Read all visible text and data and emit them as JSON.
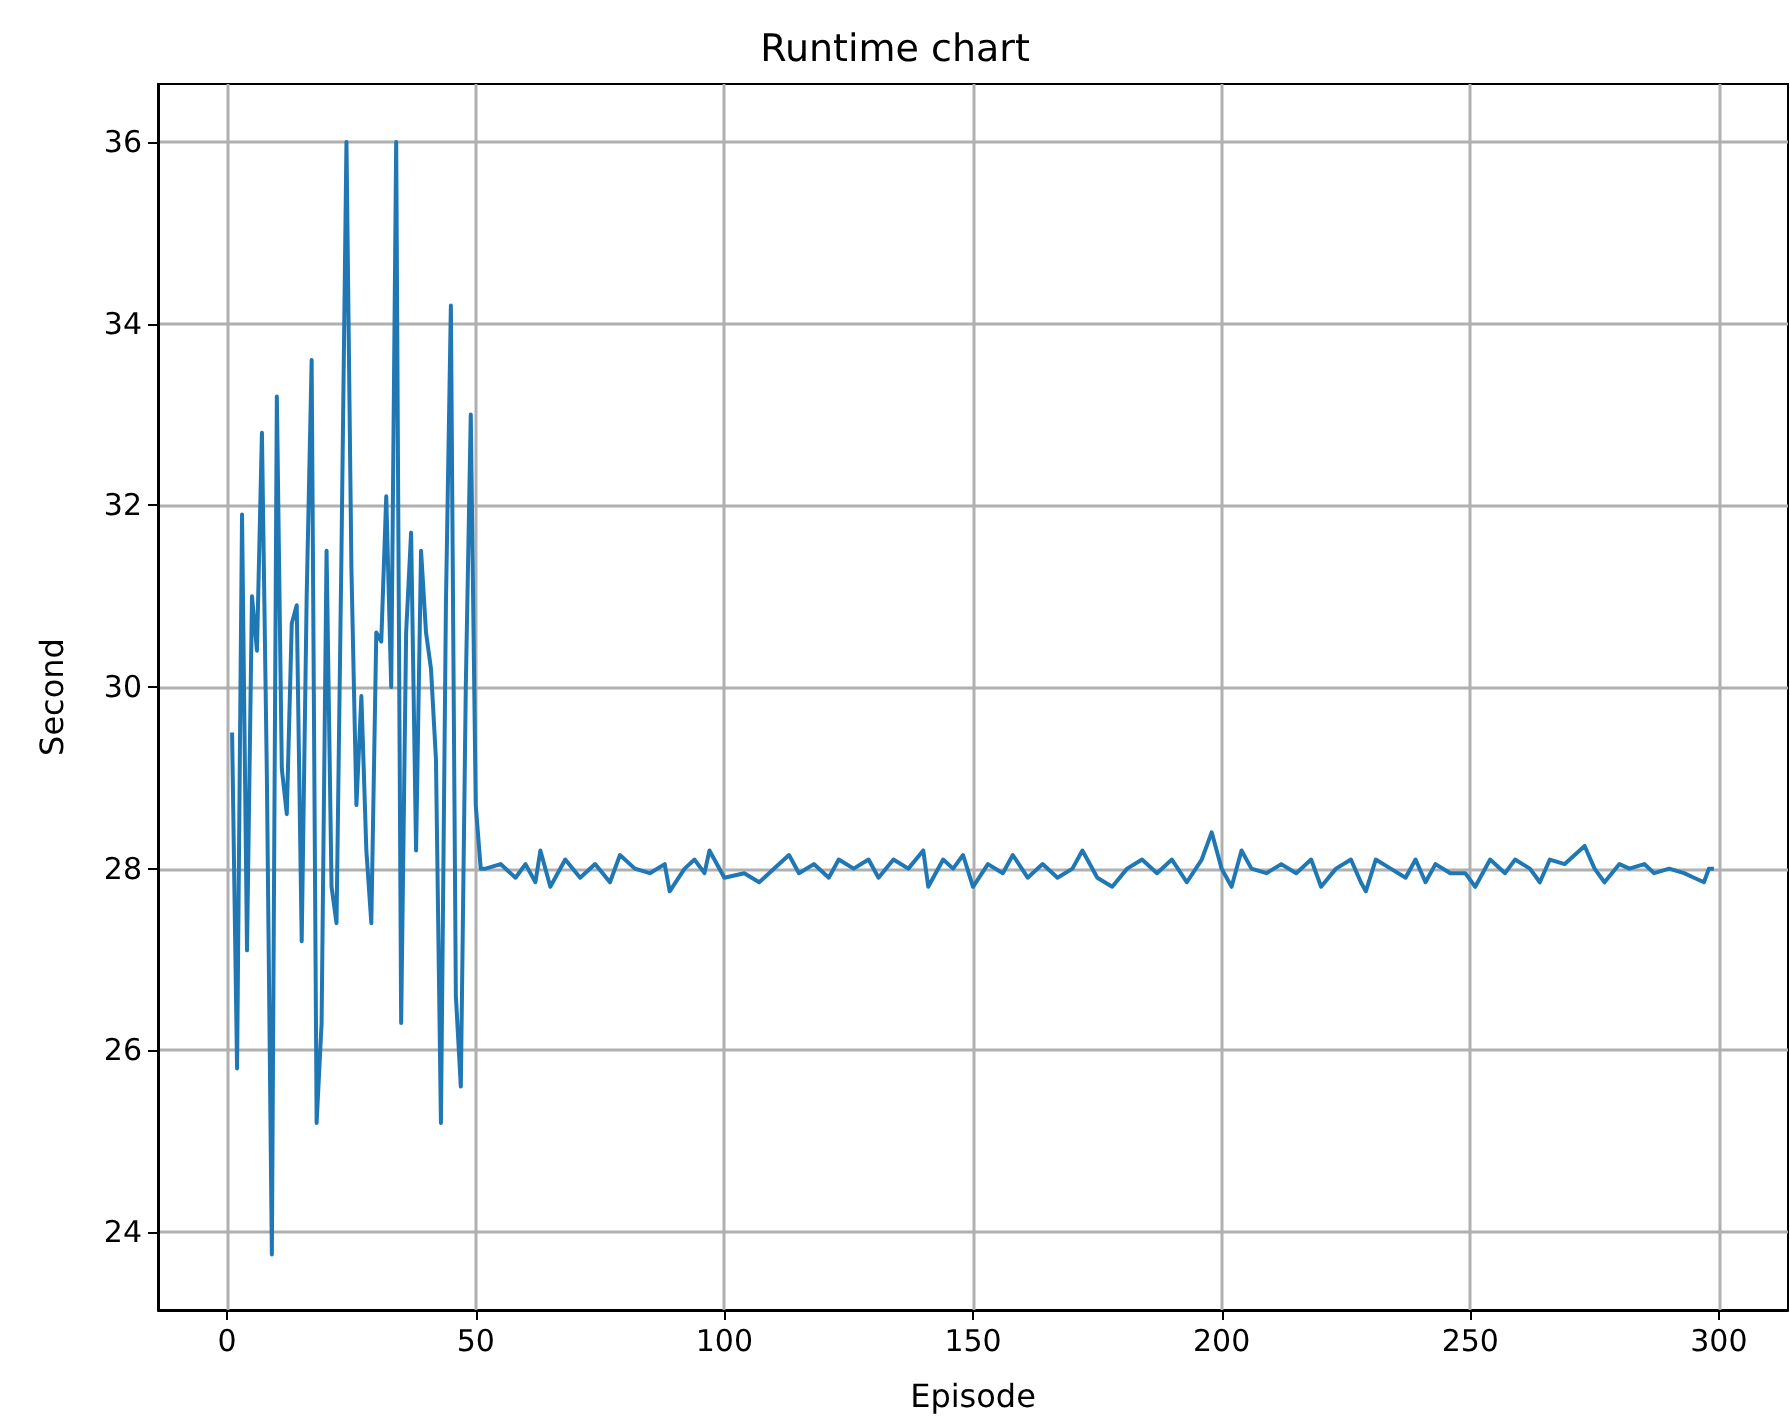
{
  "chart_data": {
    "type": "line",
    "title": "Runtime chart",
    "xlabel": "Episode",
    "ylabel": "Second",
    "x": [
      1,
      2,
      3,
      4,
      5,
      6,
      7,
      8,
      9,
      10,
      11,
      12,
      13,
      14,
      15,
      16,
      17,
      18,
      19,
      20,
      21,
      22,
      23,
      24,
      25,
      26,
      27,
      28,
      29,
      30,
      31,
      32,
      33,
      34,
      35,
      36,
      37,
      38,
      39,
      40,
      41,
      42,
      43,
      44,
      45,
      46,
      47,
      48,
      49,
      50,
      51,
      52,
      55,
      58,
      60,
      62,
      63,
      65,
      68,
      71,
      74,
      77,
      79,
      82,
      85,
      88,
      89,
      92,
      94,
      96,
      97,
      100,
      104,
      107,
      111,
      113,
      115,
      118,
      121,
      123,
      126,
      129,
      131,
      134,
      137,
      140,
      141,
      144,
      146,
      148,
      150,
      153,
      156,
      158,
      161,
      164,
      167,
      170,
      172,
      175,
      178,
      181,
      184,
      187,
      190,
      193,
      196,
      198,
      200,
      202,
      204,
      206,
      209,
      212,
      215,
      218,
      220,
      223,
      226,
      228,
      229,
      231,
      234,
      237,
      239,
      241,
      243,
      246,
      249,
      251,
      254,
      257,
      259,
      262,
      264,
      266,
      269,
      271,
      273,
      275,
      277,
      280,
      282,
      285,
      287,
      290,
      293,
      295,
      297,
      298,
      299
    ],
    "series": [
      {
        "color": "#1f77b4",
        "values": [
          29.5,
          25.8,
          31.9,
          27.1,
          31.0,
          30.4,
          32.8,
          29.0,
          23.75,
          33.2,
          29.1,
          28.6,
          30.7,
          30.9,
          27.2,
          31.0,
          33.6,
          25.2,
          26.3,
          31.5,
          27.8,
          27.4,
          31.5,
          36.0,
          31.3,
          28.7,
          29.9,
          28.2,
          27.4,
          30.6,
          30.5,
          32.1,
          30.0,
          36.0,
          26.3,
          30.6,
          31.7,
          28.2,
          31.5,
          30.6,
          30.2,
          29.2,
          25.2,
          30.9,
          34.2,
          26.6,
          25.6,
          30.0,
          33.0,
          28.7,
          28.0,
          28.0,
          28.05,
          27.9,
          28.05,
          27.85,
          28.2,
          27.8,
          28.1,
          27.9,
          28.05,
          27.85,
          28.15,
          28.0,
          27.95,
          28.05,
          27.75,
          28.0,
          28.1,
          27.95,
          28.2,
          27.9,
          27.95,
          27.85,
          28.05,
          28.15,
          27.95,
          28.05,
          27.9,
          28.1,
          28.0,
          28.1,
          27.9,
          28.1,
          28.0,
          28.2,
          27.8,
          28.1,
          28.0,
          28.15,
          27.8,
          28.05,
          27.95,
          28.15,
          27.9,
          28.05,
          27.9,
          28.0,
          28.2,
          27.9,
          27.8,
          28.0,
          28.1,
          27.95,
          28.1,
          27.85,
          28.1,
          28.4,
          28.0,
          27.8,
          28.2,
          28.0,
          27.95,
          28.05,
          27.95,
          28.1,
          27.8,
          28.0,
          28.1,
          27.85,
          27.75,
          28.1,
          28.0,
          27.9,
          28.1,
          27.85,
          28.05,
          27.95,
          27.95,
          27.8,
          28.1,
          27.95,
          28.1,
          28.0,
          27.85,
          28.1,
          28.05,
          28.15,
          28.25,
          28.0,
          27.85,
          28.05,
          28.0,
          28.05,
          27.95,
          28.0,
          27.95,
          27.9,
          27.85,
          28.0,
          28.0
        ]
      }
    ],
    "xlim": [
      -13.9,
      313.9
    ],
    "xticks": [
      0,
      50,
      100,
      150,
      200,
      250,
      300
    ],
    "ylim": [
      23.14,
      36.64
    ],
    "yticks": [
      24,
      26,
      28,
      30,
      32,
      34,
      36
    ],
    "grid": true
  }
}
